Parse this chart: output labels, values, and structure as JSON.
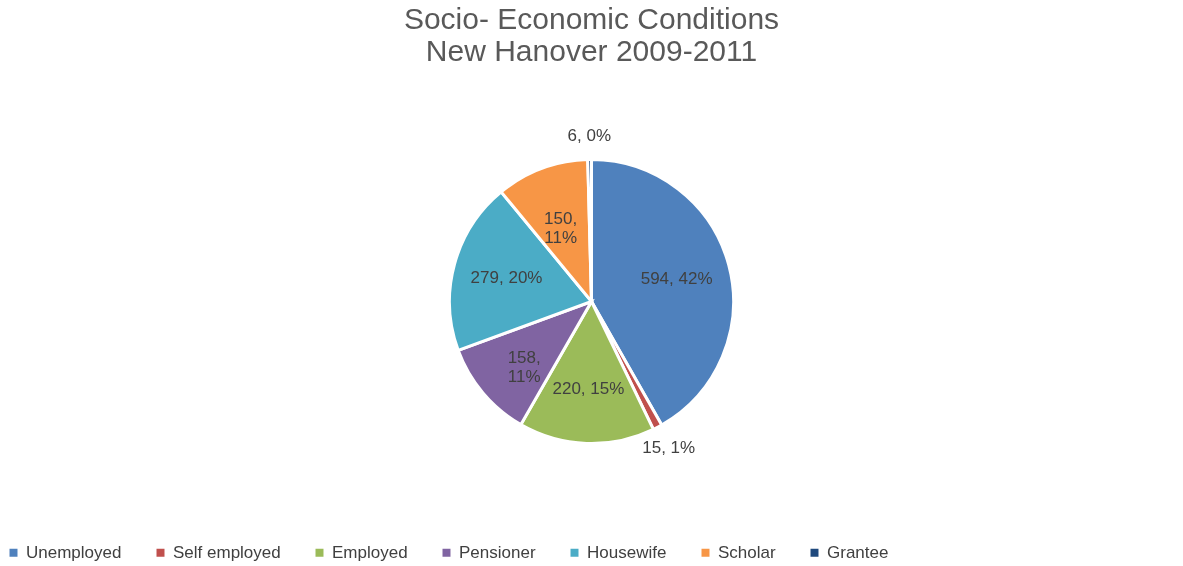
{
  "chart_data": {
    "type": "pie",
    "title": [
      "Socio- Economic Conditions",
      "New Hanover 2009-2011"
    ],
    "categories": [
      "Unemployed",
      "Self employed",
      "Employed",
      "Pensioner",
      "Housewife",
      "Scholar",
      "Grantee"
    ],
    "values": [
      594,
      15,
      220,
      158,
      279,
      150,
      6
    ],
    "colors": [
      "#4f81bd",
      "#c0504d",
      "#9bbb59",
      "#8064a2",
      "#4bacc6",
      "#f79646",
      "#1f497d"
    ],
    "value_labels": [
      "594, 42%",
      "15, 1%",
      "220, 15%",
      "158, 11%",
      "279, 20%",
      "150, 11%",
      "6, 0%"
    ],
    "legend": "bottom"
  }
}
